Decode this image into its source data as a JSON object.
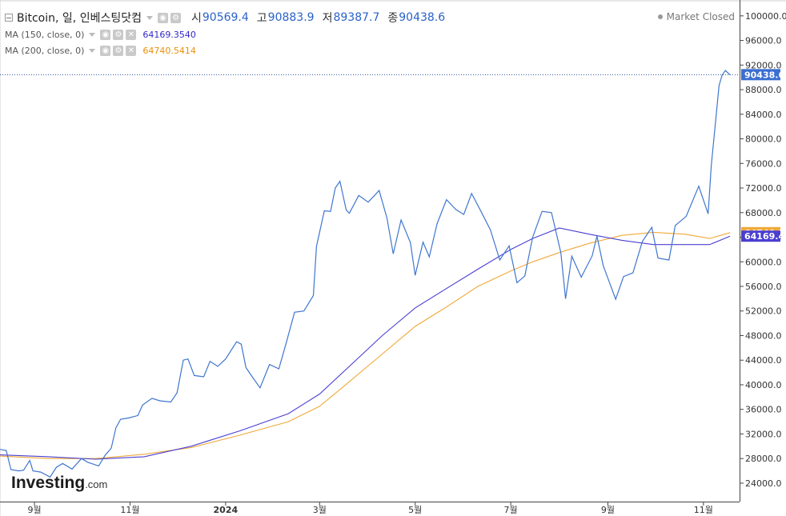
{
  "legend": {
    "symbol": "Bitcoin, 일, 인베스팅닷컴",
    "open_label": "시",
    "open": "90569.4",
    "high_label": "고",
    "high": "90883.9",
    "low_label": "저",
    "low": "89387.7",
    "close_label": "종",
    "close": "90438.6",
    "ma150_label": "MA (150, close, 0)",
    "ma150_value": "64169.3540",
    "ma200_label": "MA (200, close, 0)",
    "ma200_value": "64740.5414"
  },
  "market_status": "Market Closed",
  "logo": {
    "main": "Investing",
    "suffix": ".com"
  },
  "colors": {
    "price": "#3f76cf",
    "ma150": "#4a3fd1",
    "ma200": "#f0a93a",
    "axis": "#333333"
  },
  "chart_data": {
    "type": "line",
    "title": "Bitcoin, 일, 인베스팅닷컴",
    "xlabel": "",
    "ylabel": "",
    "ylim": [
      21000,
      101800
    ],
    "y_ticks": [
      24000,
      28000,
      32000,
      36000,
      40000,
      44000,
      48000,
      52000,
      56000,
      60000,
      64000,
      68000,
      72000,
      76000,
      80000,
      84000,
      88000,
      92000,
      96000,
      100000
    ],
    "y_tick_labels": [
      "24000.0",
      "28000.0",
      "32000.0",
      "36000.0",
      "40000.0",
      "44000.0",
      "48000.0",
      "52000.0",
      "56000.0",
      "60000.0",
      "64000.0",
      "68000.0",
      "72000.0",
      "76000.0",
      "80000.0",
      "84000.0",
      "88000.0",
      "92000.0",
      "96000.0",
      "100000.0"
    ],
    "xlim": [
      "2023-08-10",
      "2024-11-21"
    ],
    "x_ticks": [
      {
        "date": "2023-09-01",
        "label": "9월"
      },
      {
        "date": "2023-11-01",
        "label": "11월"
      },
      {
        "date": "2024-01-01",
        "label": "2024"
      },
      {
        "date": "2024-03-01",
        "label": "3월"
      },
      {
        "date": "2024-05-01",
        "label": "5월"
      },
      {
        "date": "2024-07-01",
        "label": "7월"
      },
      {
        "date": "2024-09-01",
        "label": "9월"
      },
      {
        "date": "2024-11-01",
        "label": "11월"
      }
    ],
    "last_price_label": "90438.6",
    "ma200_label": "64740.5",
    "ma150_label": "64169.4",
    "series": [
      {
        "name": "Bitcoin",
        "points": [
          [
            "2023-08-10",
            29500
          ],
          [
            "2023-08-14",
            29300
          ],
          [
            "2023-08-17",
            26200
          ],
          [
            "2023-08-22",
            26000
          ],
          [
            "2023-08-25",
            26100
          ],
          [
            "2023-08-29",
            27700
          ],
          [
            "2023-08-31",
            26000
          ],
          [
            "2023-09-05",
            25800
          ],
          [
            "2023-09-11",
            25000
          ],
          [
            "2023-09-15",
            26600
          ],
          [
            "2023-09-19",
            27200
          ],
          [
            "2023-09-25",
            26300
          ],
          [
            "2023-10-01",
            28000
          ],
          [
            "2023-10-05",
            27400
          ],
          [
            "2023-10-12",
            26800
          ],
          [
            "2023-10-16",
            28500
          ],
          [
            "2023-10-20",
            29700
          ],
          [
            "2023-10-23",
            33000
          ],
          [
            "2023-10-26",
            34400
          ],
          [
            "2023-10-31",
            34600
          ],
          [
            "2023-11-06",
            35000
          ],
          [
            "2023-11-09",
            36700
          ],
          [
            "2023-11-15",
            37800
          ],
          [
            "2023-11-20",
            37400
          ],
          [
            "2023-11-27",
            37200
          ],
          [
            "2023-12-01",
            38700
          ],
          [
            "2023-12-05",
            44000
          ],
          [
            "2023-12-08",
            44200
          ],
          [
            "2023-12-12",
            41500
          ],
          [
            "2023-12-18",
            41300
          ],
          [
            "2023-12-22",
            43800
          ],
          [
            "2023-12-27",
            43000
          ],
          [
            "2024-01-01",
            44200
          ],
          [
            "2024-01-08",
            47000
          ],
          [
            "2024-01-11",
            46600
          ],
          [
            "2024-01-14",
            42800
          ],
          [
            "2024-01-18",
            41300
          ],
          [
            "2024-01-23",
            39500
          ],
          [
            "2024-01-29",
            43300
          ],
          [
            "2024-02-04",
            42600
          ],
          [
            "2024-02-09",
            47100
          ],
          [
            "2024-02-14",
            51800
          ],
          [
            "2024-02-20",
            52000
          ],
          [
            "2024-02-26",
            54500
          ],
          [
            "2024-02-28",
            62500
          ],
          [
            "2024-03-04",
            68300
          ],
          [
            "2024-03-08",
            68200
          ],
          [
            "2024-03-11",
            72000
          ],
          [
            "2024-03-14",
            73100
          ],
          [
            "2024-03-18",
            68400
          ],
          [
            "2024-03-20",
            67900
          ],
          [
            "2024-03-26",
            70800
          ],
          [
            "2024-04-01",
            69700
          ],
          [
            "2024-04-08",
            71600
          ],
          [
            "2024-04-13",
            67100
          ],
          [
            "2024-04-17",
            61300
          ],
          [
            "2024-04-22",
            66800
          ],
          [
            "2024-04-28",
            63100
          ],
          [
            "2024-05-01",
            57800
          ],
          [
            "2024-05-06",
            63200
          ],
          [
            "2024-05-10",
            60800
          ],
          [
            "2024-05-15",
            66200
          ],
          [
            "2024-05-21",
            70100
          ],
          [
            "2024-05-27",
            68500
          ],
          [
            "2024-06-01",
            67700
          ],
          [
            "2024-06-06",
            71100
          ],
          [
            "2024-06-12",
            68200
          ],
          [
            "2024-06-18",
            65200
          ],
          [
            "2024-06-24",
            60300
          ],
          [
            "2024-06-30",
            62600
          ],
          [
            "2024-07-05",
            56600
          ],
          [
            "2024-07-10",
            57700
          ],
          [
            "2024-07-15",
            64000
          ],
          [
            "2024-07-21",
            68200
          ],
          [
            "2024-07-27",
            68000
          ],
          [
            "2024-08-02",
            61500
          ],
          [
            "2024-08-05",
            54000
          ],
          [
            "2024-08-09",
            60900
          ],
          [
            "2024-08-15",
            57500
          ],
          [
            "2024-08-22",
            61000
          ],
          [
            "2024-08-25",
            64200
          ],
          [
            "2024-08-29",
            59400
          ],
          [
            "2024-09-06",
            53900
          ],
          [
            "2024-09-11",
            57600
          ],
          [
            "2024-09-17",
            58200
          ],
          [
            "2024-09-23",
            63300
          ],
          [
            "2024-09-29",
            65600
          ],
          [
            "2024-10-03",
            60600
          ],
          [
            "2024-10-10",
            60300
          ],
          [
            "2024-10-14",
            65900
          ],
          [
            "2024-10-21",
            67400
          ],
          [
            "2024-10-29",
            72300
          ],
          [
            "2024-11-04",
            67800
          ],
          [
            "2024-11-06",
            75600
          ],
          [
            "2024-11-11",
            88700
          ],
          [
            "2024-11-13",
            90400
          ],
          [
            "2024-11-15",
            91100
          ],
          [
            "2024-11-18",
            90400
          ]
        ]
      },
      {
        "name": "MA (150, close, 0)",
        "points": [
          [
            "2023-08-10",
            28600
          ],
          [
            "2023-09-10",
            28300
          ],
          [
            "2023-10-10",
            27900
          ],
          [
            "2023-11-10",
            28300
          ],
          [
            "2023-12-10",
            30000
          ],
          [
            "2024-01-10",
            32500
          ],
          [
            "2024-02-10",
            35300
          ],
          [
            "2024-03-01",
            38500
          ],
          [
            "2024-03-20",
            43000
          ],
          [
            "2024-04-10",
            48000
          ],
          [
            "2024-05-01",
            52500
          ],
          [
            "2024-05-20",
            55500
          ],
          [
            "2024-06-10",
            58800
          ],
          [
            "2024-07-01",
            62000
          ],
          [
            "2024-07-15",
            63800
          ],
          [
            "2024-08-01",
            65500
          ],
          [
            "2024-08-20",
            64500
          ],
          [
            "2024-09-10",
            63500
          ],
          [
            "2024-09-30",
            62800
          ],
          [
            "2024-10-20",
            62800
          ],
          [
            "2024-11-05",
            62800
          ],
          [
            "2024-11-18",
            64169
          ]
        ]
      },
      {
        "name": "MA (200, close, 0)",
        "points": [
          [
            "2023-08-10",
            28400
          ],
          [
            "2023-09-10",
            28000
          ],
          [
            "2023-10-10",
            28000
          ],
          [
            "2023-11-10",
            28700
          ],
          [
            "2023-12-10",
            29800
          ],
          [
            "2024-01-10",
            31800
          ],
          [
            "2024-02-10",
            34000
          ],
          [
            "2024-03-01",
            36500
          ],
          [
            "2024-03-20",
            40500
          ],
          [
            "2024-04-10",
            45000
          ],
          [
            "2024-05-01",
            49500
          ],
          [
            "2024-05-20",
            52500
          ],
          [
            "2024-06-10",
            56000
          ],
          [
            "2024-07-01",
            58500
          ],
          [
            "2024-07-15",
            60000
          ],
          [
            "2024-08-01",
            61500
          ],
          [
            "2024-08-20",
            63000
          ],
          [
            "2024-09-10",
            64300
          ],
          [
            "2024-09-30",
            64800
          ],
          [
            "2024-10-20",
            64500
          ],
          [
            "2024-11-05",
            63800
          ],
          [
            "2024-11-18",
            64740
          ]
        ]
      }
    ]
  }
}
